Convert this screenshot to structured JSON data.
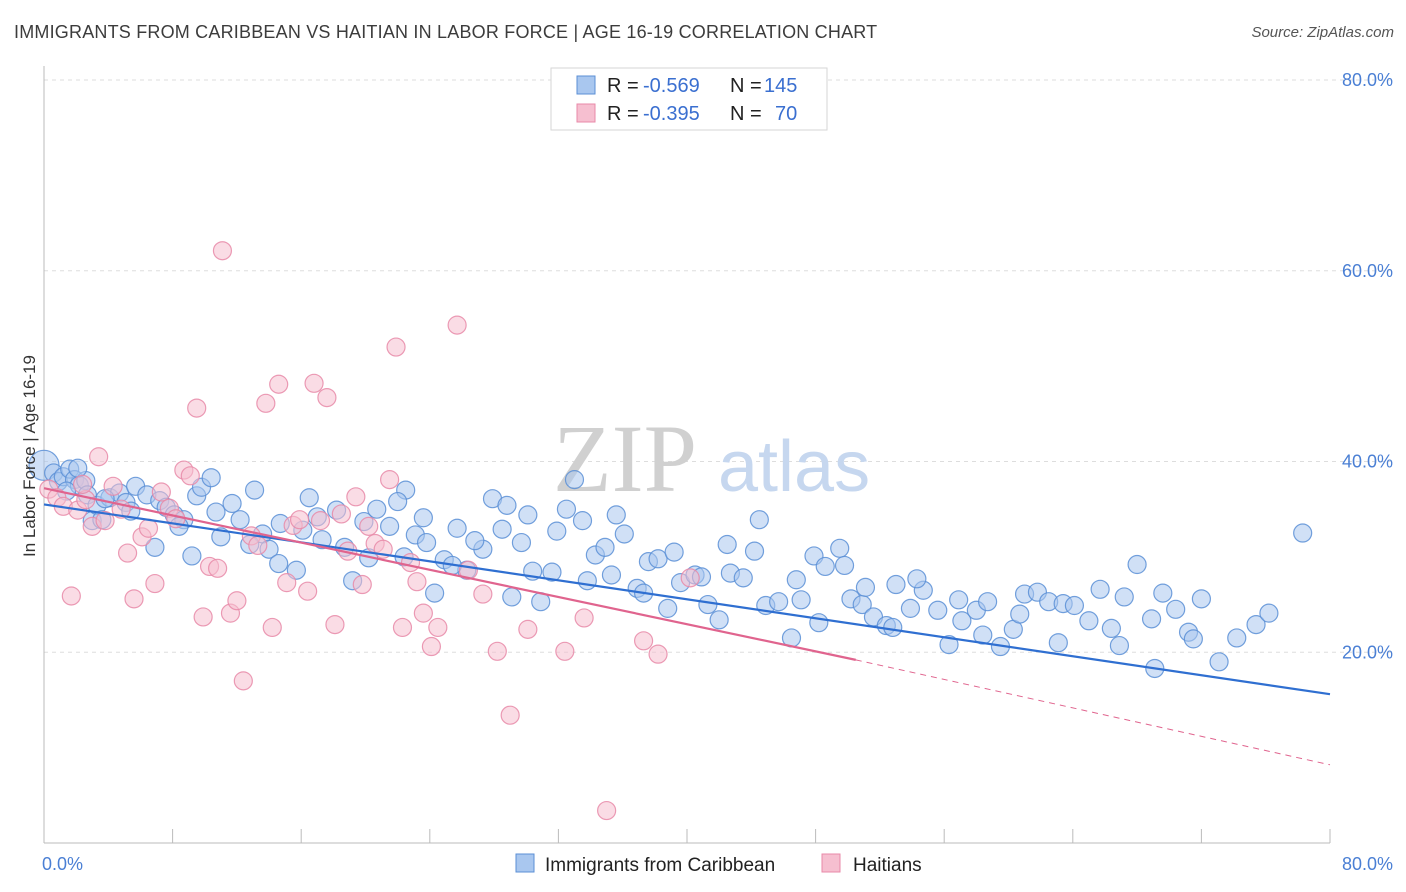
{
  "header": {
    "title": "IMMIGRANTS FROM CARIBBEAN VS HAITIAN IN LABOR FORCE | AGE 16-19 CORRELATION CHART",
    "source": "Source: ZipAtlas.com"
  },
  "watermark": {
    "zip": "ZIP",
    "atlas": "atlas"
  },
  "legend": {
    "rows": [
      {
        "r_label": "R = ",
        "r_value": "-0.569",
        "n_label": "N = ",
        "n_value": "145"
      },
      {
        "r_label": "R = ",
        "r_value": "-0.395",
        "n_label": "N = ",
        "n_value": "70"
      }
    ]
  },
  "colors": {
    "blue_fill": "#a9c7ef",
    "blue_stroke": "#5b8fd6",
    "blue_line": "#2f6fd1",
    "pink_fill": "#f6bfd0",
    "pink_stroke": "#e88aa8",
    "pink_line": "#e0648e",
    "tick_text": "#4a7fd4",
    "grid": "#dddddd"
  },
  "chart_data": {
    "type": "scatter",
    "title": "IMMIGRANTS FROM CARIBBEAN VS HAITIAN IN LABOR FORCE | AGE 16-19 CORRELATION CHART",
    "xlabel": "",
    "ylabel": "In Labor Force | Age 16-19",
    "xlim": [
      0,
      80
    ],
    "ylim": [
      0,
      80
    ],
    "x_tick_labels": [
      "0.0%",
      "80.0%"
    ],
    "y_tick_labels": [
      "20.0%",
      "40.0%",
      "60.0%",
      "80.0%"
    ],
    "y_ticks": [
      20,
      40,
      60,
      80
    ],
    "grid": true,
    "legend_position": "top-center",
    "series": [
      {
        "name": "Immigrants from Caribbean",
        "color": "#a9c7ef",
        "r": -0.569,
        "n": 145,
        "trend": {
          "x": [
            0,
            80
          ],
          "y": [
            35.5,
            15.6
          ]
        },
        "points": [
          [
            0.0,
            39.6
          ],
          [
            0.6,
            38.8
          ],
          [
            0.9,
            37.9
          ],
          [
            1.2,
            38.4
          ],
          [
            1.6,
            39.2
          ],
          [
            1.9,
            38.1
          ],
          [
            2.2,
            37.5
          ],
          [
            2.6,
            38.0
          ],
          [
            2.7,
            36.5
          ],
          [
            3.0,
            33.8
          ],
          [
            3.3,
            35.4
          ],
          [
            3.6,
            33.9
          ],
          [
            4.1,
            36.2
          ],
          [
            4.7,
            36.7
          ],
          [
            5.1,
            35.7
          ],
          [
            5.7,
            37.4
          ],
          [
            6.4,
            36.5
          ],
          [
            7.2,
            35.9
          ],
          [
            7.6,
            35.2
          ],
          [
            8.1,
            34.4
          ],
          [
            8.7,
            33.9
          ],
          [
            9.5,
            36.4
          ],
          [
            9.8,
            37.3
          ],
          [
            10.4,
            38.3
          ],
          [
            11.0,
            32.1
          ],
          [
            11.7,
            35.6
          ],
          [
            12.2,
            33.9
          ],
          [
            13.1,
            37.0
          ],
          [
            13.6,
            32.4
          ],
          [
            14.0,
            30.8
          ],
          [
            14.7,
            33.5
          ],
          [
            15.7,
            28.6
          ],
          [
            16.5,
            36.2
          ],
          [
            17.0,
            34.2
          ],
          [
            17.3,
            31.8
          ],
          [
            18.2,
            34.9
          ],
          [
            19.2,
            27.5
          ],
          [
            19.9,
            33.7
          ],
          [
            20.7,
            35.0
          ],
          [
            21.5,
            33.2
          ],
          [
            22.4,
            30.0
          ],
          [
            22.5,
            37.0
          ],
          [
            23.1,
            32.3
          ],
          [
            23.8,
            31.5
          ],
          [
            24.3,
            26.2
          ],
          [
            24.9,
            29.7
          ],
          [
            25.7,
            33.0
          ],
          [
            26.3,
            28.6
          ],
          [
            27.3,
            30.8
          ],
          [
            27.9,
            36.1
          ],
          [
            28.5,
            32.9
          ],
          [
            29.1,
            25.8
          ],
          [
            29.7,
            31.5
          ],
          [
            30.4,
            28.5
          ],
          [
            30.9,
            25.3
          ],
          [
            31.6,
            28.4
          ],
          [
            32.5,
            35.0
          ],
          [
            33.0,
            38.1
          ],
          [
            33.5,
            33.8
          ],
          [
            34.3,
            30.2
          ],
          [
            34.9,
            31.0
          ],
          [
            35.3,
            28.1
          ],
          [
            36.1,
            32.4
          ],
          [
            36.9,
            26.7
          ],
          [
            37.6,
            29.5
          ],
          [
            38.2,
            29.8
          ],
          [
            38.8,
            24.6
          ],
          [
            39.6,
            27.3
          ],
          [
            40.5,
            28.1
          ],
          [
            41.3,
            25.0
          ],
          [
            42.0,
            23.4
          ],
          [
            42.7,
            28.3
          ],
          [
            43.5,
            27.8
          ],
          [
            44.2,
            30.6
          ],
          [
            44.9,
            24.9
          ],
          [
            45.7,
            25.3
          ],
          [
            46.5,
            21.5
          ],
          [
            47.1,
            25.5
          ],
          [
            47.9,
            30.1
          ],
          [
            48.6,
            29.0
          ],
          [
            49.5,
            30.9
          ],
          [
            50.2,
            25.6
          ],
          [
            50.9,
            25.0
          ],
          [
            51.6,
            23.7
          ],
          [
            52.4,
            22.8
          ],
          [
            53.0,
            27.1
          ],
          [
            53.9,
            24.6
          ],
          [
            54.7,
            26.5
          ],
          [
            55.6,
            24.4
          ],
          [
            56.3,
            20.8
          ],
          [
            57.1,
            23.3
          ],
          [
            58.0,
            24.4
          ],
          [
            58.7,
            25.3
          ],
          [
            59.5,
            20.6
          ],
          [
            60.3,
            22.4
          ],
          [
            61.0,
            26.1
          ],
          [
            61.8,
            26.3
          ],
          [
            62.5,
            25.3
          ],
          [
            63.4,
            25.1
          ],
          [
            64.1,
            24.9
          ],
          [
            65.0,
            23.3
          ],
          [
            65.7,
            26.6
          ],
          [
            66.4,
            22.5
          ],
          [
            67.2,
            25.8
          ],
          [
            68.0,
            29.2
          ],
          [
            68.9,
            23.5
          ],
          [
            69.6,
            26.2
          ],
          [
            70.4,
            24.5
          ],
          [
            71.2,
            22.1
          ],
          [
            72.0,
            25.6
          ],
          [
            73.1,
            19.0
          ],
          [
            74.2,
            21.5
          ],
          [
            75.4,
            22.9
          ],
          [
            76.2,
            24.1
          ],
          [
            78.3,
            32.5
          ],
          [
            1.4,
            36.9
          ],
          [
            2.1,
            39.3
          ],
          [
            3.8,
            36.1
          ],
          [
            5.4,
            34.8
          ],
          [
            6.9,
            31.0
          ],
          [
            8.4,
            33.2
          ],
          [
            9.2,
            30.1
          ],
          [
            10.7,
            34.7
          ],
          [
            12.8,
            31.3
          ],
          [
            14.6,
            29.3
          ],
          [
            16.1,
            32.8
          ],
          [
            18.7,
            31.0
          ],
          [
            20.2,
            29.9
          ],
          [
            22.0,
            35.8
          ],
          [
            23.6,
            34.1
          ],
          [
            25.4,
            29.1
          ],
          [
            26.8,
            31.7
          ],
          [
            28.8,
            35.4
          ],
          [
            30.1,
            34.4
          ],
          [
            31.9,
            32.7
          ],
          [
            33.8,
            27.5
          ],
          [
            35.6,
            34.4
          ],
          [
            37.3,
            26.2
          ],
          [
            39.2,
            30.5
          ],
          [
            40.9,
            27.9
          ],
          [
            42.5,
            31.3
          ],
          [
            44.5,
            33.9
          ],
          [
            46.8,
            27.6
          ],
          [
            48.2,
            23.1
          ],
          [
            49.8,
            29.1
          ],
          [
            51.1,
            26.8
          ],
          [
            52.8,
            22.6
          ],
          [
            54.3,
            27.7
          ],
          [
            56.9,
            25.5
          ],
          [
            58.4,
            21.8
          ],
          [
            60.7,
            24.0
          ],
          [
            63.1,
            21.0
          ],
          [
            66.9,
            20.7
          ],
          [
            69.1,
            18.3
          ],
          [
            71.5,
            21.4
          ]
        ]
      },
      {
        "name": "Haitians",
        "color": "#f6bfd0",
        "r": -0.395,
        "n": 70,
        "trend": {
          "x": [
            0,
            50.5
          ],
          "y": [
            37.2,
            19.2
          ]
        },
        "trend_extension": {
          "x": [
            50.5,
            80
          ],
          "y": [
            19.2,
            8.2
          ]
        },
        "points": [
          [
            0.3,
            37.1
          ],
          [
            0.8,
            36.2
          ],
          [
            1.2,
            35.3
          ],
          [
            1.7,
            25.9
          ],
          [
            2.1,
            34.9
          ],
          [
            2.6,
            36.0
          ],
          [
            3.0,
            33.2
          ],
          [
            3.4,
            40.5
          ],
          [
            3.8,
            33.8
          ],
          [
            4.3,
            37.4
          ],
          [
            4.8,
            35.0
          ],
          [
            5.2,
            30.4
          ],
          [
            5.6,
            25.6
          ],
          [
            6.1,
            32.1
          ],
          [
            6.5,
            33.0
          ],
          [
            6.9,
            27.2
          ],
          [
            7.3,
            36.8
          ],
          [
            7.8,
            35.1
          ],
          [
            8.2,
            34.0
          ],
          [
            8.7,
            39.1
          ],
          [
            9.1,
            38.5
          ],
          [
            9.5,
            45.6
          ],
          [
            9.9,
            23.7
          ],
          [
            10.3,
            29.0
          ],
          [
            10.8,
            28.8
          ],
          [
            11.1,
            62.1
          ],
          [
            11.6,
            24.1
          ],
          [
            12.0,
            25.4
          ],
          [
            12.4,
            17.0
          ],
          [
            12.9,
            32.2
          ],
          [
            13.3,
            31.2
          ],
          [
            13.8,
            46.1
          ],
          [
            14.2,
            22.6
          ],
          [
            14.6,
            48.1
          ],
          [
            15.1,
            27.3
          ],
          [
            15.5,
            33.3
          ],
          [
            15.9,
            33.9
          ],
          [
            16.4,
            26.4
          ],
          [
            16.8,
            48.2
          ],
          [
            17.2,
            33.8
          ],
          [
            17.6,
            46.7
          ],
          [
            18.1,
            22.9
          ],
          [
            18.5,
            34.5
          ],
          [
            18.9,
            30.6
          ],
          [
            19.4,
            36.3
          ],
          [
            19.8,
            27.1
          ],
          [
            20.2,
            33.2
          ],
          [
            20.6,
            31.4
          ],
          [
            21.1,
            30.8
          ],
          [
            21.5,
            38.1
          ],
          [
            21.9,
            52.0
          ],
          [
            22.3,
            22.6
          ],
          [
            22.8,
            29.4
          ],
          [
            23.2,
            27.4
          ],
          [
            23.6,
            24.1
          ],
          [
            24.1,
            20.6
          ],
          [
            24.5,
            22.6
          ],
          [
            25.7,
            54.3
          ],
          [
            26.4,
            28.6
          ],
          [
            27.3,
            26.1
          ],
          [
            28.2,
            20.1
          ],
          [
            29.0,
            13.4
          ],
          [
            30.1,
            22.4
          ],
          [
            32.4,
            20.1
          ],
          [
            33.6,
            23.6
          ],
          [
            35.0,
            3.4
          ],
          [
            37.3,
            21.2
          ],
          [
            38.2,
            19.8
          ],
          [
            40.2,
            27.8
          ],
          [
            2.4,
            37.6
          ]
        ]
      }
    ]
  }
}
